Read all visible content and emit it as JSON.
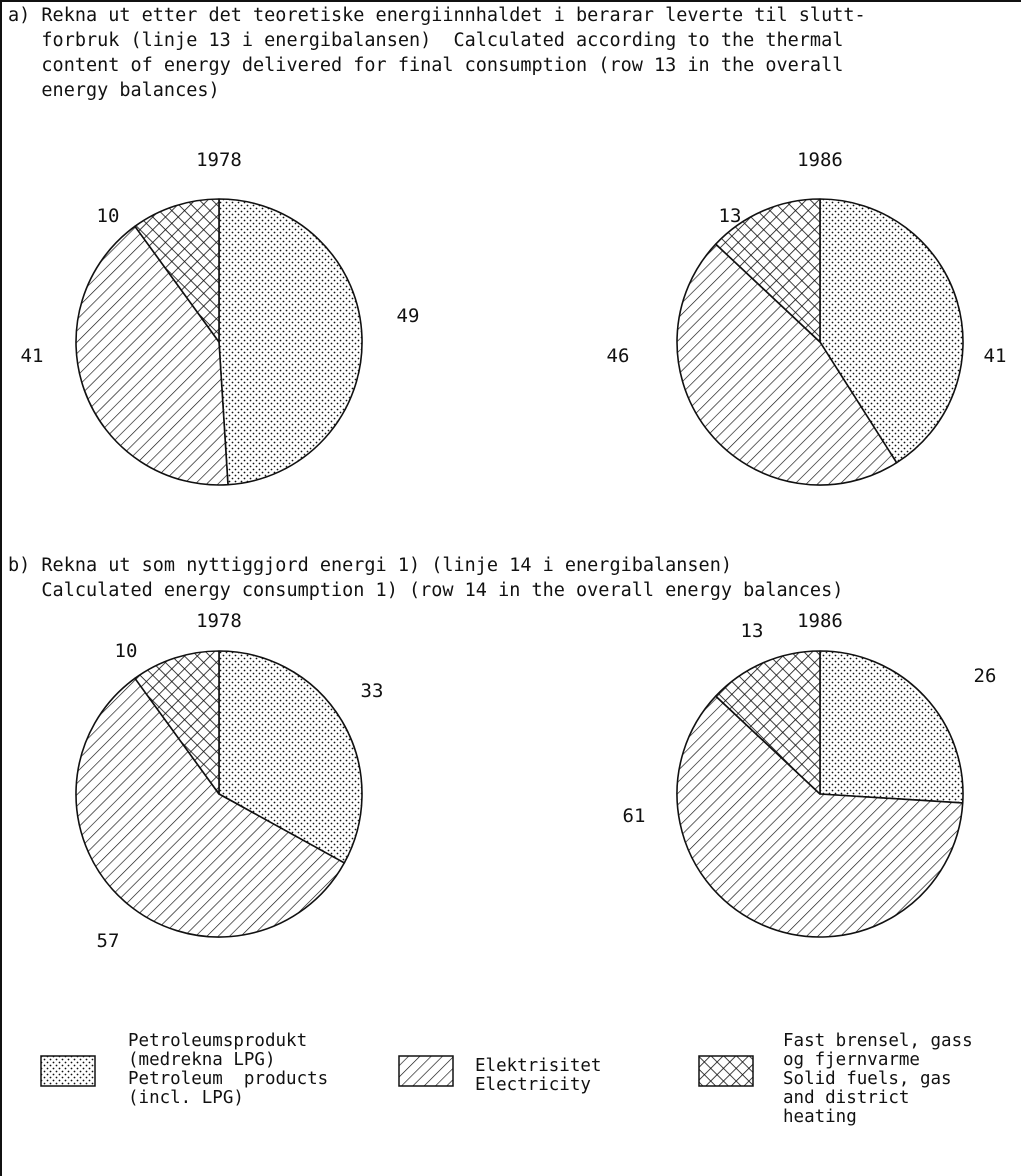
{
  "captions": {
    "a": "a) Rekna ut etter det teoretiske energiinnhaldet i berarar leverte til slutt-\n   forbruk (linje 13 i energibalansen)  Calculated according to the thermal\n   content of energy delivered for final consumption (row 13 in the overall\n   energy balances)",
    "b": "b) Rekna ut som nyttiggjord energi 1) (linje 14 i energibalansen)\n   Calculated energy consumption 1) (row 14 in the overall energy balances)"
  },
  "chart_data": [
    {
      "type": "pie",
      "title": "1978",
      "panel": "a",
      "categories": [
        "Petroleumsprodukt",
        "Elektrisitet",
        "Fast brensel"
      ],
      "values": [
        49,
        41,
        10
      ]
    },
    {
      "type": "pie",
      "title": "1986",
      "panel": "a",
      "categories": [
        "Petroleumsprodukt",
        "Elektrisitet",
        "Fast brensel"
      ],
      "values": [
        41,
        46,
        13
      ]
    },
    {
      "type": "pie",
      "title": "1978",
      "panel": "b",
      "categories": [
        "Petroleumsprodukt",
        "Elektrisitet",
        "Fast brensel"
      ],
      "values": [
        33,
        57,
        10
      ]
    },
    {
      "type": "pie",
      "title": "1986",
      "panel": "b",
      "categories": [
        "Petroleumsprodukt",
        "Elektrisitet",
        "Fast brensel"
      ],
      "values": [
        26,
        61,
        13
      ]
    }
  ],
  "legend": [
    {
      "pattern": "dots",
      "text": "Petroleumsprodukt\n(medrekna LPG)\nPetroleum  products\n(incl. LPG)"
    },
    {
      "pattern": "hatch",
      "text": "Elektrisitet\nElectricity"
    },
    {
      "pattern": "cross",
      "text": "Fast brensel, gass\nog fjernvarme\nSolid fuels, gas\nand district\nheating"
    }
  ]
}
